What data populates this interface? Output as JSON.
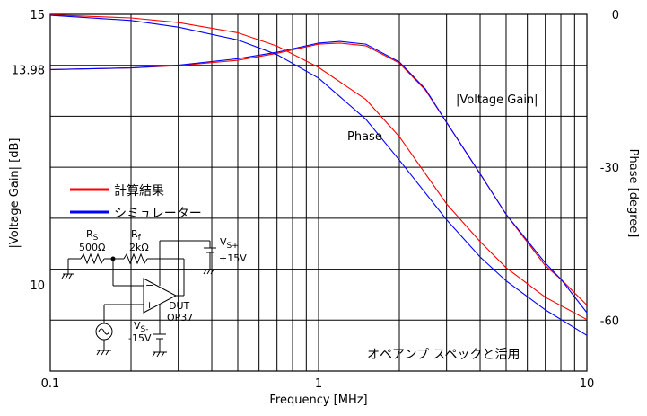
{
  "chart_data": {
    "type": "line",
    "title": "",
    "xlabel": "Frequency [MHz]",
    "ylabel_left": "|Voltage Gain| [dB]",
    "ylabel_right": "Phase [degree]",
    "x_scale": "log",
    "xlim": [
      0.1,
      10
    ],
    "ylim_left": [
      8.4,
      15
    ],
    "ylim_right": [
      -70,
      0
    ],
    "x_tick_labels": [
      "0.1",
      "1",
      "10"
    ],
    "y_left_tick_labels": [
      "15",
      "13.98",
      "10"
    ],
    "y_right_tick_labels": [
      "0",
      "-30",
      "-60"
    ],
    "grid": true,
    "legend_position": "center-left",
    "annotations": {
      "gain_label": "|Voltage Gain|",
      "phase_label": "Phase",
      "caption": "オペアンプ スペックと活用"
    },
    "circuit": {
      "rs_name": "R",
      "rs_sub": "S",
      "rs_value": "500Ω",
      "rf_name": "R",
      "rf_sub": "f",
      "rf_value": "2kΩ",
      "vplus_name": "V",
      "vplus_sub": "S+",
      "vplus_value": "+15V",
      "vminus_name": "V",
      "vminus_sub": "S-",
      "vminus_value": "-15V",
      "dut_label": "DUT",
      "dut_part": "OP37",
      "minus_sign": "−",
      "plus_sign": "+"
    },
    "series": [
      {
        "name": "計算結果",
        "color": "#ff0000",
        "quantity": "gain",
        "x": [
          0.1,
          0.2,
          0.3,
          0.5,
          0.7,
          1.0,
          1.2,
          1.5,
          2.0,
          2.5,
          3.0,
          4.0,
          5.0,
          7.0,
          8.0,
          10.0
        ],
        "y": [
          13.98,
          14.01,
          14.05,
          14.15,
          14.28,
          14.45,
          14.47,
          14.42,
          14.1,
          13.6,
          13.0,
          12.05,
          11.3,
          10.35,
          10.1,
          9.62
        ]
      },
      {
        "name": "シミュレーター",
        "color": "#0000ff",
        "quantity": "gain",
        "x": [
          0.1,
          0.2,
          0.3,
          0.5,
          0.7,
          1.0,
          1.2,
          1.5,
          2.0,
          2.5,
          3.0,
          4.0,
          5.0,
          7.0,
          8.0,
          10.0
        ],
        "y": [
          13.98,
          14.01,
          14.06,
          14.18,
          14.3,
          14.47,
          14.5,
          14.45,
          14.12,
          13.62,
          13.0,
          12.05,
          11.3,
          10.4,
          10.1,
          9.48
        ]
      },
      {
        "name": "計算結果",
        "color": "#ff0000",
        "quantity": "phase",
        "x": [
          0.1,
          0.2,
          0.3,
          0.5,
          0.7,
          1.0,
          1.5,
          2.0,
          3.0,
          4.0,
          5.0,
          7.0,
          10.0
        ],
        "y": [
          -0.1,
          -0.7,
          -1.6,
          -3.6,
          -6.2,
          -10.4,
          -16.7,
          -24.0,
          -37.2,
          -44.6,
          -49.7,
          -55.5,
          -59.9
        ]
      },
      {
        "name": "シミュレーター",
        "color": "#0000ff",
        "quantity": "phase",
        "x": [
          0.1,
          0.2,
          0.3,
          0.5,
          0.7,
          1.0,
          1.5,
          2.0,
          3.0,
          4.0,
          5.0,
          7.0,
          10.0
        ],
        "y": [
          -0.2,
          -1.2,
          -2.5,
          -5.0,
          -7.9,
          -12.5,
          -20.6,
          -28.6,
          -40.3,
          -47.6,
          -52.3,
          -58.0,
          -63.0
        ]
      }
    ]
  }
}
